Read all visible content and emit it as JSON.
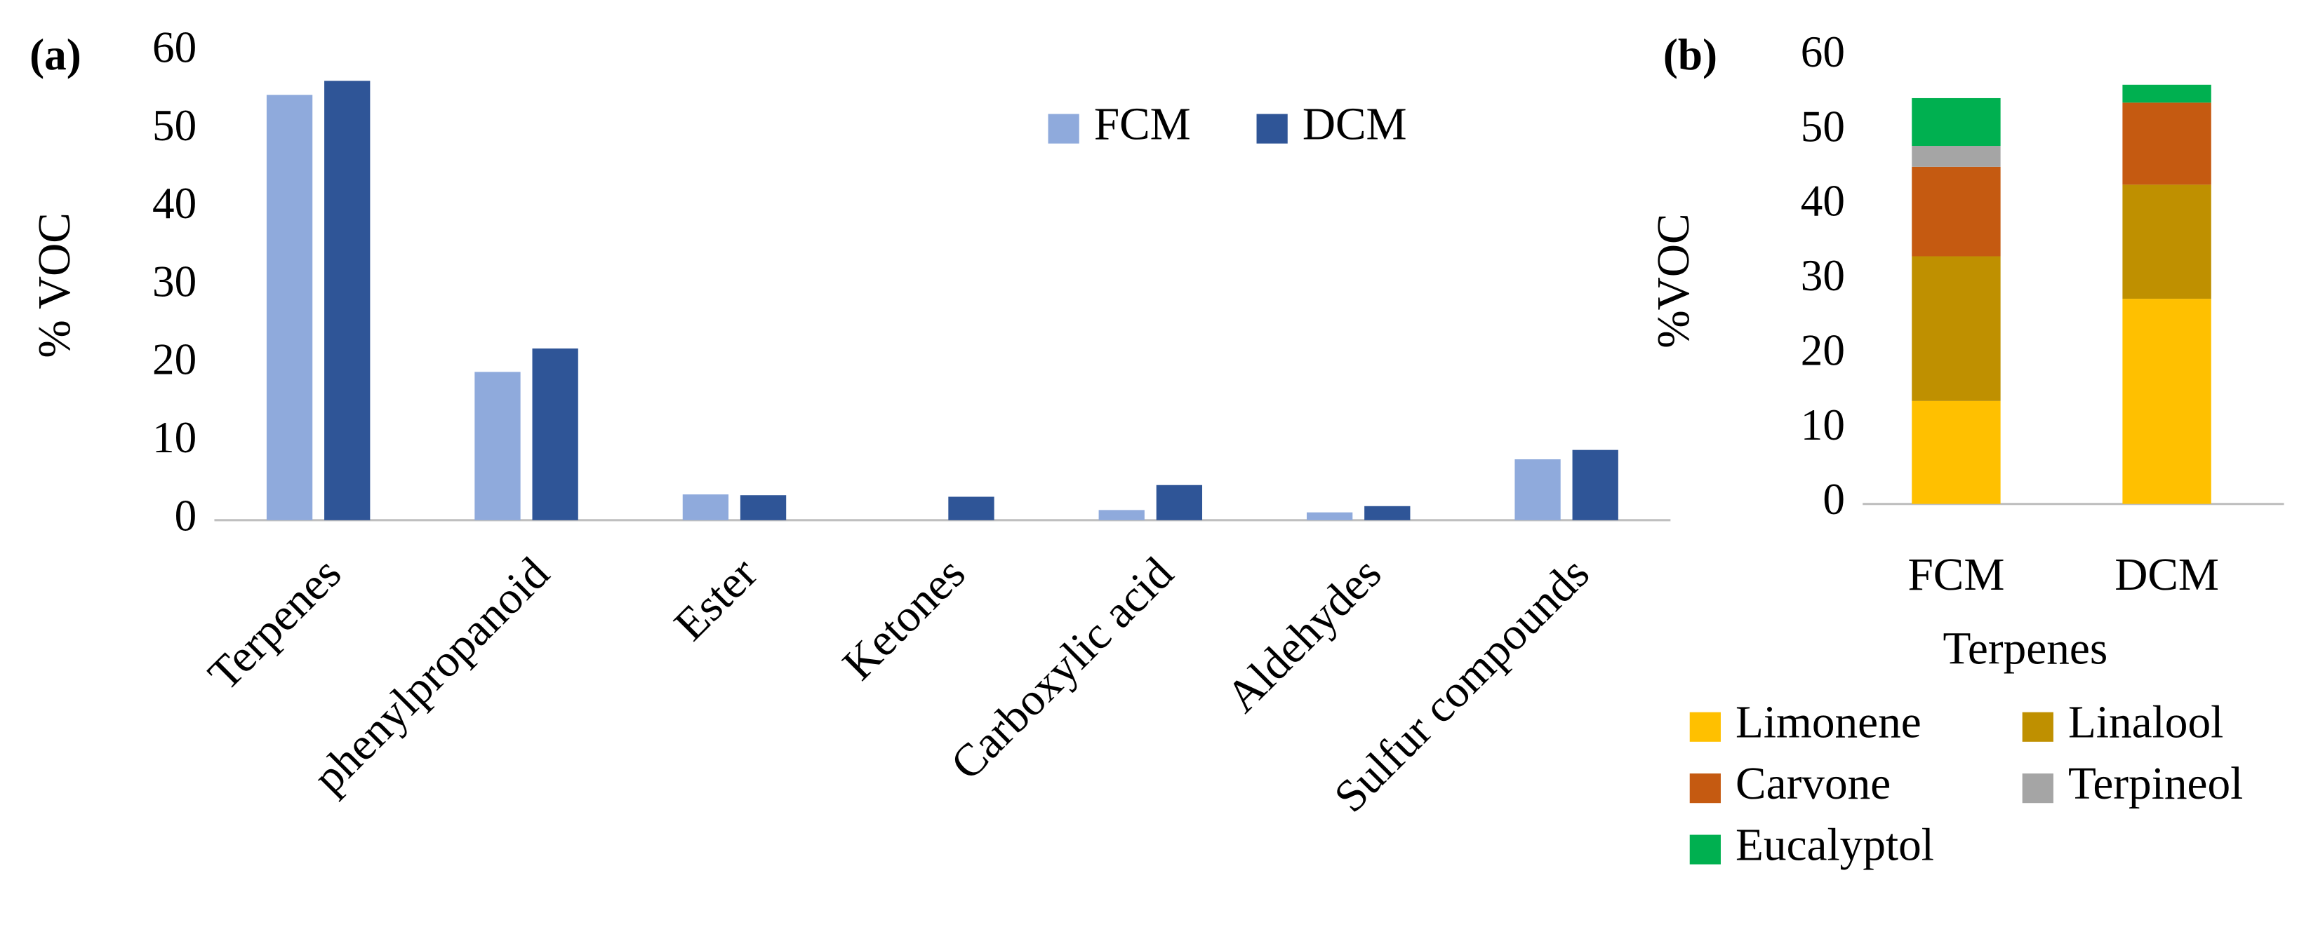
{
  "chart_data": [
    {
      "type": "bar",
      "panel_label": "(a)",
      "y_label": "% VOC",
      "categories": [
        "Terpenes",
        "phenylpropanoid",
        "Ester",
        "Ketones",
        "Carboxylic acid",
        "Aldehydes",
        "Sulfur compounds"
      ],
      "series": [
        {
          "name": "FCM",
          "color": "#8faadc",
          "values": [
            54.5,
            19,
            3.3,
            0,
            1.3,
            1.0,
            7.8
          ]
        },
        {
          "name": "DCM",
          "color": "#2f5597",
          "values": [
            56.3,
            22,
            3.2,
            3.0,
            4.5,
            1.8,
            9.0
          ]
        }
      ],
      "ylim": [
        0,
        60
      ],
      "yticks": [
        0,
        10,
        20,
        30,
        40,
        50,
        60
      ],
      "grid": false,
      "legend": "top-right"
    },
    {
      "type": "stacked-bar",
      "panel_label": "(b)",
      "y_label": "%VOC",
      "x_label": "Terpenes",
      "categories": [
        "FCM",
        "DCM"
      ],
      "series": [
        {
          "name": "Limonene",
          "color": "#ffc000",
          "values": [
            13.8,
            27.5
          ]
        },
        {
          "name": "Linalool",
          "color": "#bf9000",
          "values": [
            19.4,
            15.3
          ]
        },
        {
          "name": "Carvone",
          "color": "#c55a11",
          "values": [
            12.0,
            11.0
          ]
        },
        {
          "name": "Terpineol",
          "color": "#a5a5a5",
          "values": [
            2.8,
            0
          ]
        },
        {
          "name": "Eucalyptol",
          "color": "#00b050",
          "values": [
            6.4,
            2.4
          ]
        }
      ],
      "ylim": [
        0,
        60
      ],
      "yticks": [
        0,
        10,
        20,
        30,
        40,
        50,
        60
      ],
      "grid": false,
      "legend": "bottom"
    }
  ]
}
